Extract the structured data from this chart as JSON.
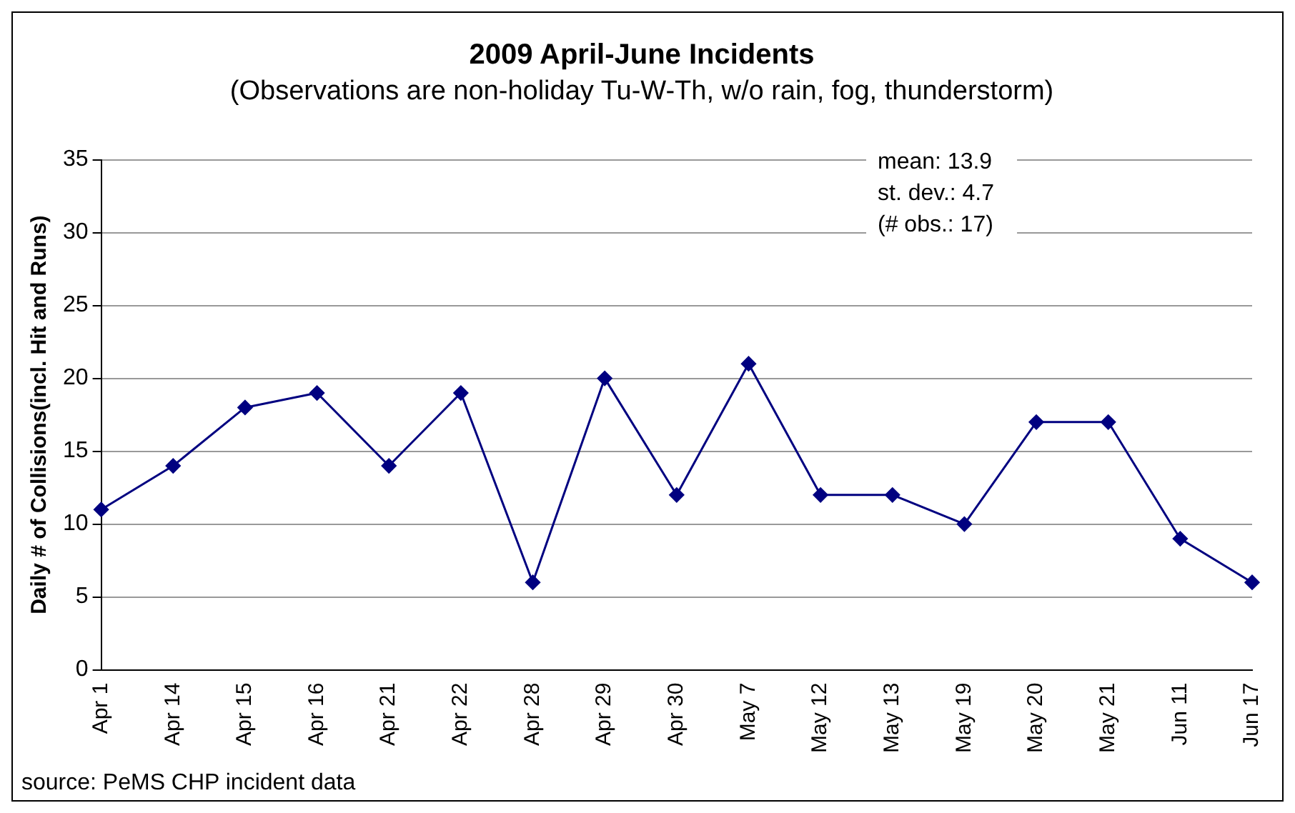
{
  "chart_data": {
    "type": "line",
    "title": "2009 April-June Incidents",
    "subtitle": "(Observations are non-holiday Tu-W-Th, w/o rain, fog, thunderstorm)",
    "ylabel": "Daily # of Collisions(incl. Hit and Runs)",
    "categories": [
      "Apr 1",
      "Apr 14",
      "Apr 15",
      "Apr 16",
      "Apr 21",
      "Apr 22",
      "Apr 28",
      "Apr 29",
      "Apr 30",
      "May 7",
      "May 12",
      "May 13",
      "May 19",
      "May 20",
      "May 21",
      "Jun 11",
      "Jun 17"
    ],
    "series": [
      {
        "color": "#000080",
        "values": [
          11,
          14,
          18,
          19,
          14,
          19,
          6,
          20,
          12,
          21,
          12,
          12,
          10,
          17,
          17,
          9,
          6
        ]
      }
    ],
    "ylim": [
      0,
      35
    ],
    "yticks": [
      0,
      5,
      10,
      15,
      20,
      25,
      30,
      35
    ],
    "grid": "y",
    "legend": false,
    "marker": "diamond",
    "line_style": "solid",
    "annotations": [
      "mean: 13.9",
      "st. dev.: 4.7",
      "(# obs.: 17)",
      "source: PeMS CHP incident data"
    ]
  }
}
